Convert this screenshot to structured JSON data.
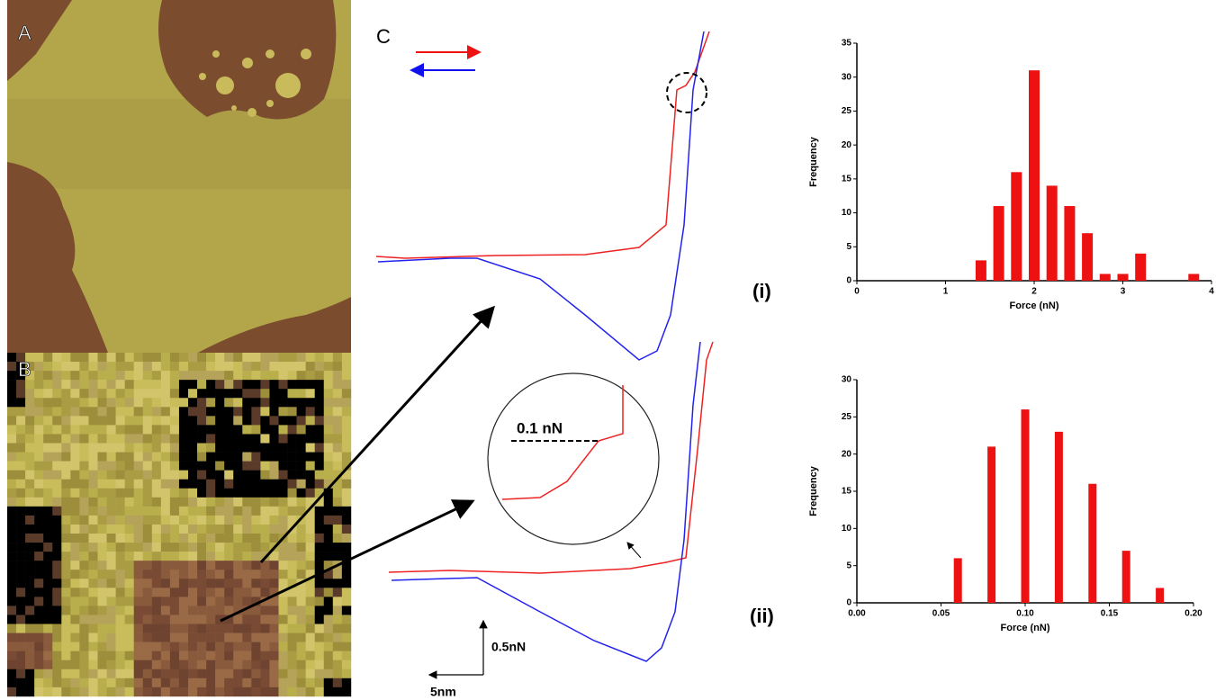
{
  "figure": {
    "panel_a": "A",
    "panel_b": "B",
    "panel_c": "C",
    "inset_label": "0.1 nN",
    "scale_force": "0.5nN",
    "scale_distance": "5nm"
  },
  "chart_data": [
    {
      "type": "bar",
      "label": "(i)",
      "xlabel": "Force (nN)",
      "ylabel": "Frequency",
      "color": "#ee1111",
      "x": [
        1.4,
        1.6,
        1.8,
        2.0,
        2.2,
        2.4,
        2.6,
        2.8,
        3.0,
        3.2,
        3.8
      ],
      "values": [
        3,
        11,
        16,
        31,
        14,
        11,
        7,
        1,
        1,
        4,
        1
      ],
      "xlim": [
        0,
        4
      ],
      "xticks": [
        0,
        1,
        2,
        3,
        4
      ],
      "ylim": [
        0,
        35
      ],
      "yticks": [
        0,
        5,
        10,
        15,
        20,
        25,
        30,
        35
      ]
    },
    {
      "type": "bar",
      "label": "(ii)",
      "xlabel": "Force (nN)",
      "ylabel": "Frequency",
      "color": "#ee1111",
      "x": [
        0.06,
        0.08,
        0.1,
        0.12,
        0.14,
        0.16,
        0.18
      ],
      "values": [
        6,
        21,
        26,
        23,
        16,
        7,
        2
      ],
      "xlim": [
        0,
        0.2
      ],
      "xticks": [
        {
          "value": 0,
          "label": "0.00"
        },
        0.05,
        {
          "value": 0.1,
          "label": "0.10"
        },
        0.15,
        {
          "value": 0.2,
          "label": "0.20"
        }
      ],
      "ylim": [
        0,
        30
      ],
      "yticks": [
        0,
        5,
        10,
        15,
        20,
        25,
        30
      ]
    }
  ]
}
